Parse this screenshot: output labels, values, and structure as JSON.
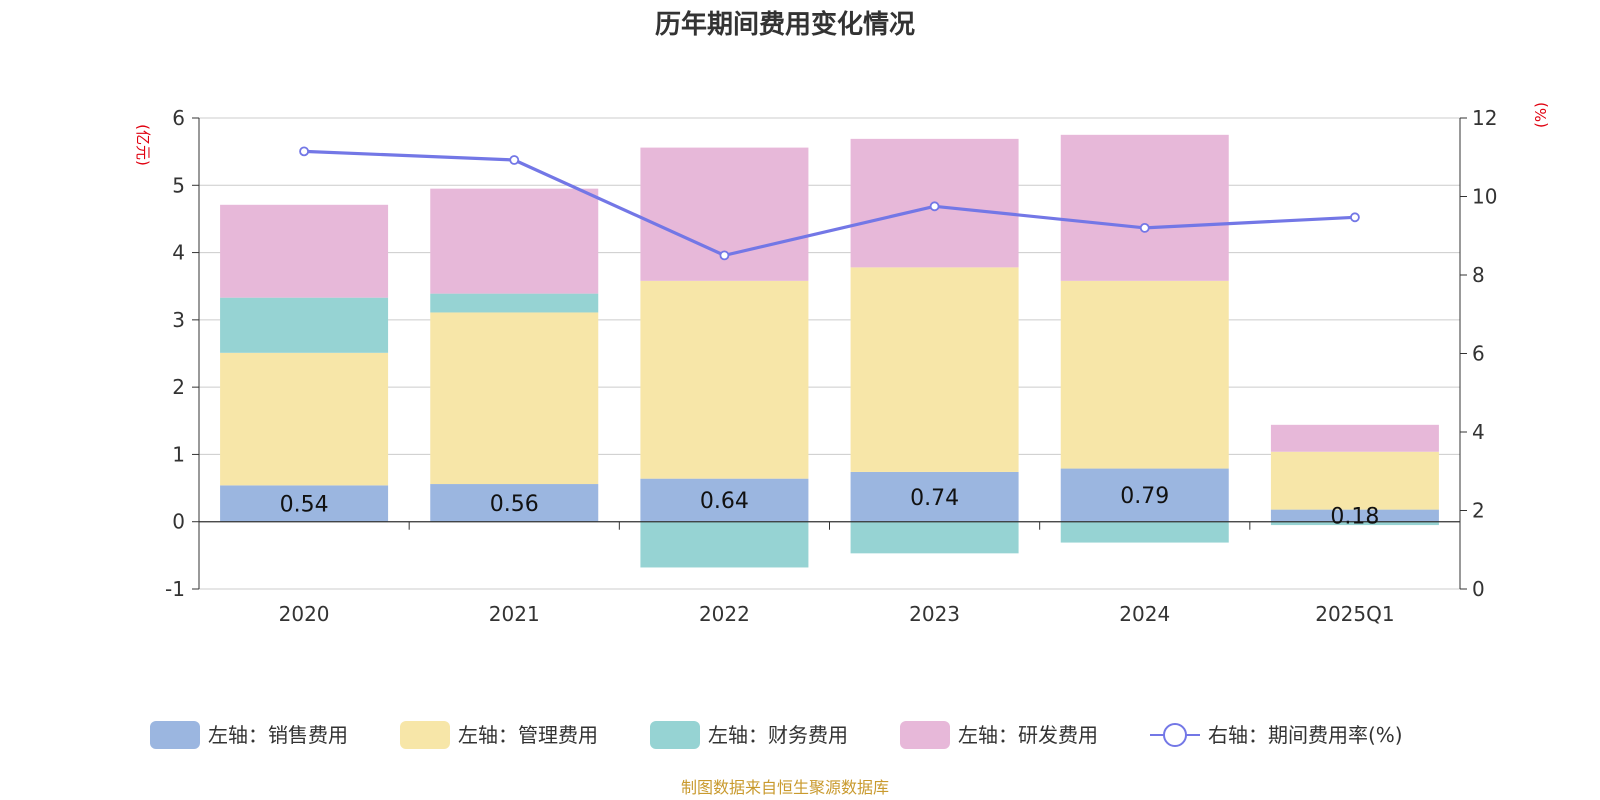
{
  "chart_data": {
    "type": "bar",
    "title": "历年期间费用变化情况",
    "left_unit": "(亿元)",
    "right_unit": "(%)",
    "categories": [
      "2020",
      "2021",
      "2022",
      "2023",
      "2024",
      "2025Q1"
    ],
    "left_axis": {
      "min": -1,
      "max": 6,
      "ticks": [
        "-1",
        "0",
        "1",
        "2",
        "3",
        "4",
        "5",
        "6"
      ]
    },
    "right_axis": {
      "min": 0,
      "max": 12,
      "ticks": [
        "0",
        "2",
        "4",
        "6",
        "8",
        "10",
        "12"
      ]
    },
    "grid": true,
    "legend_position": "bottom",
    "series": [
      {
        "name": "左轴：销售费用",
        "type": "bar",
        "axis": "left",
        "color": "#9bb6e0",
        "values": [
          0.54,
          0.56,
          0.64,
          0.74,
          0.79,
          0.18
        ],
        "labels": [
          "0.54",
          "0.56",
          "0.64",
          "0.74",
          "0.79",
          "0.18"
        ]
      },
      {
        "name": "左轴：管理费用",
        "type": "bar",
        "axis": "left",
        "color": "#f7e6a8",
        "values": [
          1.97,
          2.55,
          2.94,
          3.04,
          2.79,
          0.86
        ]
      },
      {
        "name": "左轴：财务费用",
        "type": "bar",
        "axis": "left",
        "color": "#96d3d3",
        "values": [
          0.82,
          0.28,
          -0.68,
          -0.47,
          -0.31,
          -0.05
        ]
      },
      {
        "name": "左轴：研发费用",
        "type": "bar",
        "axis": "left",
        "color": "#e7b8d9",
        "values": [
          1.38,
          1.56,
          1.98,
          1.91,
          2.17,
          0.4
        ]
      },
      {
        "name": "右轴：期间费用率(%)",
        "type": "line",
        "axis": "right",
        "color": "#7377e6",
        "values": [
          11.15,
          10.93,
          8.5,
          9.75,
          9.2,
          9.47
        ]
      }
    ]
  },
  "source": "制图数据来自恒生聚源数据库"
}
